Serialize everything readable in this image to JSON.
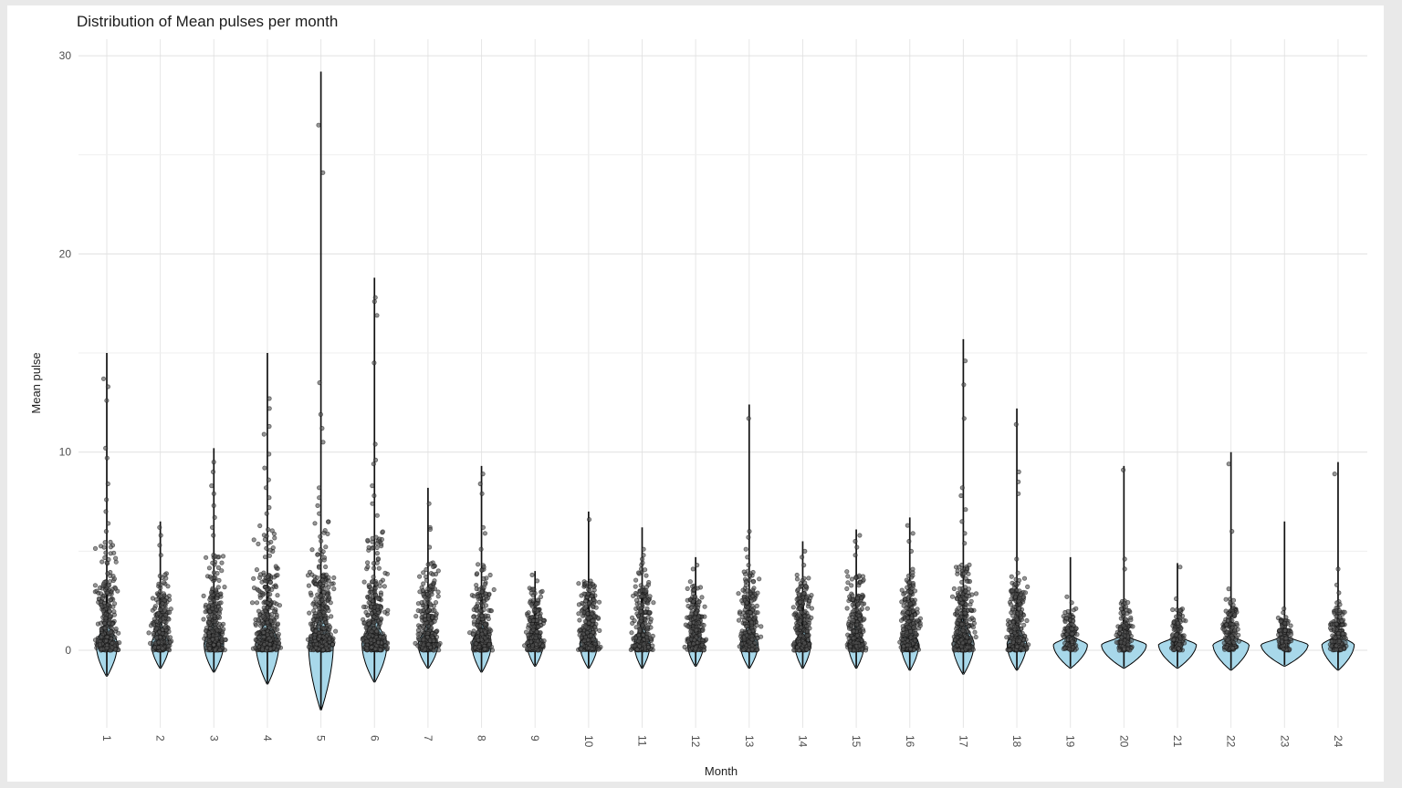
{
  "colors": {
    "page_bg": "#e9e9e9",
    "panel_bg": "#ffffff",
    "grid_major": "#e0e0e0",
    "grid_minor": "#efefef",
    "grid_vertical": "#e6e6e6",
    "violin_fill": "#a8d8ea",
    "violin_stroke": "#000000",
    "spine_stroke": "#111111",
    "point_fill": "#565656",
    "point_stroke": "#0e0e0e",
    "title_text": "#1c1c1c",
    "tick_text": "#4d4d4d"
  },
  "chart_data": {
    "type": "scatter",
    "subtype": "violin_with_jitter",
    "title": "Distribution of Mean pulses per month",
    "xlabel": "Month",
    "ylabel": "Mean pulse",
    "legend": false,
    "grid": true,
    "ylim": [
      -3.9,
      30.8
    ],
    "y_ticks": [
      0,
      10,
      20,
      30
    ],
    "y_minor_ticks": [
      5,
      15,
      25
    ],
    "x_ticks": [
      "1",
      "2",
      "3",
      "4",
      "5",
      "6",
      "7",
      "8",
      "9",
      "10",
      "11",
      "12",
      "13",
      "14",
      "15",
      "16",
      "17",
      "18",
      "19",
      "20",
      "21",
      "22",
      "23",
      "24"
    ],
    "months": [
      {
        "m": 1,
        "spike_max": 15.0,
        "tail": -1.3,
        "bulge_w": 22,
        "spread": 0.8,
        "n": 360,
        "bulk_max": 5.5,
        "cloud_w": 32,
        "dense_cap": 2.2,
        "outliers": [
          13.7,
          13.3,
          12.6,
          10.2,
          9.7,
          8.4,
          7.6,
          7.0,
          6.4,
          6.0
        ]
      },
      {
        "m": 2,
        "spike_max": 6.5,
        "tail": -0.9,
        "bulge_w": 18,
        "spread": 0.7,
        "n": 280,
        "bulk_max": 4.2,
        "cloud_w": 28,
        "dense_cap": 1.8,
        "outliers": [
          6.2,
          5.8,
          5.3,
          4.8
        ]
      },
      {
        "m": 3,
        "spike_max": 10.2,
        "tail": -1.1,
        "bulge_w": 20,
        "spread": 0.75,
        "n": 340,
        "bulk_max": 5.0,
        "cloud_w": 30,
        "dense_cap": 2.0,
        "outliers": [
          9.5,
          9.0,
          8.3,
          7.9,
          7.3,
          6.7,
          6.2,
          5.8
        ]
      },
      {
        "m": 4,
        "spike_max": 15.0,
        "tail": -1.7,
        "bulge_w": 24,
        "spread": 0.9,
        "n": 420,
        "bulk_max": 6.5,
        "cloud_w": 36,
        "dense_cap": 2.4,
        "outliers": [
          12.7,
          12.2,
          11.3,
          10.9,
          9.9,
          9.2,
          8.6,
          8.2,
          7.7,
          7.2,
          6.9
        ]
      },
      {
        "m": 5,
        "spike_max": 29.2,
        "tail": -3.0,
        "bulge_w": 26,
        "spread": 0.9,
        "n": 440,
        "bulk_max": 6.5,
        "cloud_w": 36,
        "dense_cap": 2.4,
        "outliers": [
          26.5,
          24.1,
          13.5,
          11.9,
          11.2,
          10.5,
          8.2,
          7.7,
          7.3,
          6.9
        ]
      },
      {
        "m": 6,
        "spike_max": 18.8,
        "tail": -1.6,
        "bulge_w": 26,
        "spread": 0.9,
        "n": 420,
        "bulk_max": 6.0,
        "cloud_w": 34,
        "dense_cap": 2.2,
        "outliers": [
          17.8,
          17.6,
          16.9,
          14.5,
          10.4,
          9.6,
          9.4,
          8.3,
          7.8,
          7.4,
          6.8
        ]
      },
      {
        "m": 7,
        "spike_max": 8.2,
        "tail": -0.9,
        "bulge_w": 20,
        "spread": 0.7,
        "n": 320,
        "bulk_max": 4.5,
        "cloud_w": 30,
        "dense_cap": 2.0,
        "outliers": [
          7.4,
          6.2,
          6.1,
          5.2
        ]
      },
      {
        "m": 8,
        "spike_max": 9.3,
        "tail": -1.1,
        "bulge_w": 20,
        "spread": 0.7,
        "n": 320,
        "bulk_max": 4.5,
        "cloud_w": 30,
        "dense_cap": 2.0,
        "outliers": [
          8.9,
          8.4,
          7.9,
          6.2,
          5.9,
          5.1
        ]
      },
      {
        "m": 9,
        "spike_max": 4.0,
        "tail": -0.8,
        "bulge_w": 16,
        "spread": 0.6,
        "n": 260,
        "bulk_max": 3.2,
        "cloud_w": 26,
        "dense_cap": 1.5,
        "outliers": [
          3.8,
          3.5
        ]
      },
      {
        "m": 10,
        "spike_max": 7.0,
        "tail": -0.9,
        "bulge_w": 18,
        "spread": 0.65,
        "n": 300,
        "bulk_max": 3.5,
        "cloud_w": 28,
        "dense_cap": 1.8,
        "outliers": [
          6.6,
          3.4
        ]
      },
      {
        "m": 11,
        "spike_max": 6.2,
        "tail": -0.9,
        "bulge_w": 16,
        "spread": 0.7,
        "n": 320,
        "bulk_max": 4.5,
        "cloud_w": 28,
        "dense_cap": 1.9,
        "outliers": [
          5.1,
          4.8,
          4.6
        ]
      },
      {
        "m": 12,
        "spike_max": 4.7,
        "tail": -0.8,
        "bulge_w": 16,
        "spread": 0.6,
        "n": 280,
        "bulk_max": 3.5,
        "cloud_w": 26,
        "dense_cap": 1.7,
        "outliers": [
          4.3,
          4.1
        ]
      },
      {
        "m": 13,
        "spike_max": 12.4,
        "tail": -0.9,
        "bulge_w": 18,
        "spread": 0.7,
        "n": 300,
        "bulk_max": 4.0,
        "cloud_w": 28,
        "dense_cap": 1.9,
        "outliers": [
          11.7,
          6.0,
          5.7,
          5.1,
          4.7,
          4.3
        ]
      },
      {
        "m": 14,
        "spike_max": 5.5,
        "tail": -0.9,
        "bulge_w": 16,
        "spread": 0.6,
        "n": 300,
        "bulk_max": 3.8,
        "cloud_w": 26,
        "dense_cap": 1.8,
        "outliers": [
          5.0,
          4.7,
          4.3
        ]
      },
      {
        "m": 15,
        "spike_max": 6.1,
        "tail": -0.9,
        "bulge_w": 16,
        "spread": 0.6,
        "n": 300,
        "bulk_max": 4.0,
        "cloud_w": 26,
        "dense_cap": 1.8,
        "outliers": [
          5.8,
          5.5,
          5.2,
          4.8
        ]
      },
      {
        "m": 16,
        "spike_max": 6.7,
        "tail": -1.0,
        "bulge_w": 18,
        "spread": 0.65,
        "n": 320,
        "bulk_max": 4.2,
        "cloud_w": 28,
        "dense_cap": 1.9,
        "outliers": [
          6.3,
          5.9,
          5.5,
          5.0
        ]
      },
      {
        "m": 17,
        "spike_max": 15.7,
        "tail": -1.2,
        "bulge_w": 22,
        "spread": 0.8,
        "n": 360,
        "bulk_max": 4.5,
        "cloud_w": 30,
        "dense_cap": 2.0,
        "outliers": [
          14.6,
          13.4,
          11.7,
          8.2,
          7.8,
          7.1,
          6.5,
          5.9,
          5.4
        ]
      },
      {
        "m": 18,
        "spike_max": 12.2,
        "tail": -1.0,
        "bulge_w": 20,
        "spread": 0.7,
        "n": 320,
        "bulk_max": 4.0,
        "cloud_w": 28,
        "dense_cap": 1.9,
        "outliers": [
          11.4,
          9.0,
          8.5,
          7.9,
          4.6
        ]
      },
      {
        "m": 19,
        "spike_max": 4.7,
        "tail": -0.9,
        "bulge_w": 36,
        "spread": 0.32,
        "n": 150,
        "bulk_max": 2.2,
        "cloud_w": 20,
        "dense_cap": 1.1,
        "outliers": [
          2.7,
          2.4
        ]
      },
      {
        "m": 20,
        "spike_max": 9.3,
        "tail": -0.9,
        "bulge_w": 48,
        "spread": 0.32,
        "n": 170,
        "bulk_max": 2.5,
        "cloud_w": 22,
        "dense_cap": 1.2,
        "outliers": [
          9.1,
          4.6,
          4.1
        ]
      },
      {
        "m": 21,
        "spike_max": 4.4,
        "tail": -0.9,
        "bulge_w": 40,
        "spread": 0.3,
        "n": 140,
        "bulk_max": 2.2,
        "cloud_w": 20,
        "dense_cap": 1.1,
        "outliers": [
          4.2,
          2.6
        ]
      },
      {
        "m": 22,
        "spike_max": 10.0,
        "tail": -1.0,
        "bulge_w": 38,
        "spread": 0.32,
        "n": 170,
        "bulk_max": 2.6,
        "cloud_w": 22,
        "dense_cap": 1.3,
        "outliers": [
          9.4,
          6.0,
          3.1
        ]
      },
      {
        "m": 23,
        "spike_max": 6.5,
        "tail": -0.8,
        "bulge_w": 50,
        "spread": 0.3,
        "n": 150,
        "bulk_max": 1.8,
        "cloud_w": 20,
        "dense_cap": 1.0,
        "outliers": [
          2.1,
          1.9
        ]
      },
      {
        "m": 24,
        "spike_max": 9.5,
        "tail": -1.0,
        "bulge_w": 34,
        "spread": 0.34,
        "n": 190,
        "bulk_max": 2.6,
        "cloud_w": 22,
        "dense_cap": 1.3,
        "outliers": [
          8.9,
          4.1,
          3.3,
          2.9
        ]
      }
    ]
  }
}
